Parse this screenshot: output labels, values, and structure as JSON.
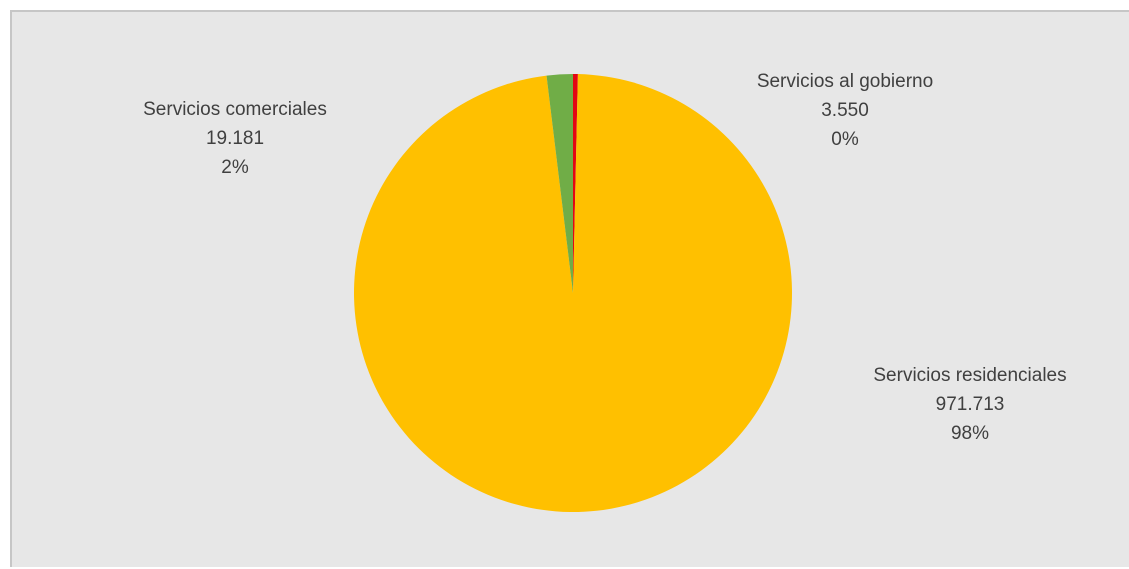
{
  "chart_data": {
    "type": "pie",
    "title": "",
    "start_angle_deg": 0,
    "direction": "clockwise",
    "slices": [
      {
        "label": "Servicios al gobierno",
        "value": 3550,
        "value_label": "3.550",
        "percent_label": "0%",
        "color": "#e30613"
      },
      {
        "label": "Servicios residenciales",
        "value": 971713,
        "value_label": "971.713",
        "percent_label": "98%",
        "color": "#ffc000"
      },
      {
        "label": "Servicios comerciales",
        "value": 19181,
        "value_label": "19.181",
        "percent_label": "2%",
        "color": "#70ad47"
      }
    ],
    "legend": "none"
  }
}
